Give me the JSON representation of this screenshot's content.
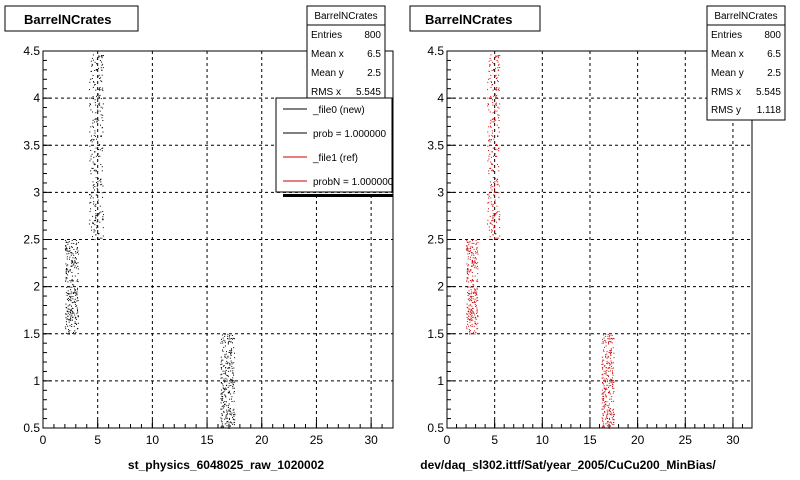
{
  "chart_data": [
    {
      "type": "scatter",
      "title": "BarrelNCrates",
      "xlabel": "st_physics_6048025_raw_1020002",
      "ylabel": "",
      "xlim": [
        0,
        32
      ],
      "ylim": [
        0.5,
        4.5
      ],
      "xticks": [
        "0",
        "5",
        "10",
        "15",
        "20",
        "25",
        "30"
      ],
      "yticks": [
        "0.5",
        "1",
        "1.5",
        "2",
        "2.5",
        "3",
        "3.5",
        "4",
        "4.5"
      ],
      "grid": true,
      "series": [
        {
          "color": "#000000",
          "clusters": [
            {
              "x": [
                2,
                3.2
              ],
              "y": [
                1.5,
                2.5
              ]
            },
            {
              "x": [
                4.2,
                5.5
              ],
              "y": [
                2.5,
                4.5
              ]
            },
            {
              "x": [
                16.2,
                17.5
              ],
              "y": [
                0.5,
                1.5
              ]
            }
          ]
        }
      ],
      "stats": {
        "name": "BarrelNCrates",
        "rows": [
          {
            "label": "Entries",
            "value": "800"
          },
          {
            "label": "Mean x",
            "value": "6.5"
          },
          {
            "label": "Mean y",
            "value": "2.5"
          },
          {
            "label": "RMS x",
            "value": "5.545"
          }
        ]
      },
      "legend": [
        {
          "label": "_file0 (new)",
          "color": "#000000"
        },
        {
          "label": "prob = 1.000000",
          "color": "#000000"
        },
        {
          "label": "_file1 (ref)",
          "color": "#cc0000"
        },
        {
          "label": "probN = 1.000000",
          "color": "#cc0000"
        }
      ]
    },
    {
      "type": "scatter",
      "title": "BarrelNCrates",
      "xlabel": "dev/daq_sl302.ittf/Sat/year_2005/CuCu200_MinBias/",
      "ylabel": "",
      "xlim": [
        0,
        32
      ],
      "ylim": [
        0.5,
        4.5
      ],
      "xticks": [
        "0",
        "5",
        "10",
        "15",
        "20",
        "25",
        "30"
      ],
      "yticks": [
        "0.5",
        "1",
        "1.5",
        "2",
        "2.5",
        "3",
        "3.5",
        "4",
        "4.5"
      ],
      "grid": true,
      "series": [
        {
          "color": "#cc0000",
          "clusters": [
            {
              "x": [
                2,
                3.2
              ],
              "y": [
                1.5,
                2.5
              ]
            },
            {
              "x": [
                4.2,
                5.5
              ],
              "y": [
                2.5,
                4.5
              ]
            },
            {
              "x": [
                16.2,
                17.5
              ],
              "y": [
                0.5,
                1.5
              ]
            }
          ]
        }
      ],
      "stats": {
        "name": "BarrelNCrates",
        "rows": [
          {
            "label": "Entries",
            "value": "800"
          },
          {
            "label": "Mean x",
            "value": "6.5"
          },
          {
            "label": "Mean y",
            "value": "2.5"
          },
          {
            "label": "RMS x",
            "value": "5.545"
          },
          {
            "label": "RMS y",
            "value": "1.118"
          }
        ]
      }
    }
  ]
}
